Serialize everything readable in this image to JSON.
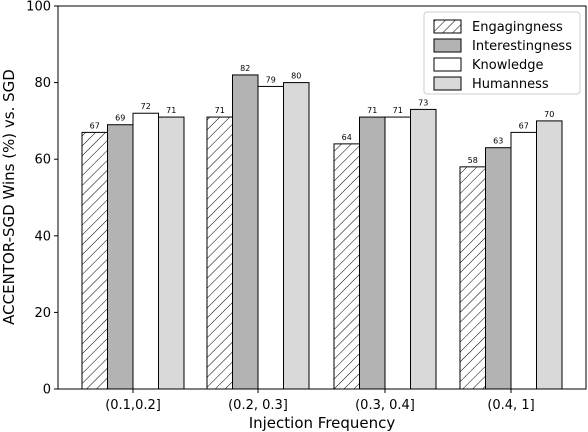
{
  "chart_data": {
    "type": "bar",
    "categories": [
      "(0.1,0.2]",
      "(0.2, 0.3]",
      "(0.3, 0.4]",
      "(0.4, 1]"
    ],
    "series": [
      {
        "name": "Engagingness",
        "values": [
          67,
          71,
          64,
          58
        ],
        "fill": "#ffffff",
        "pattern": "hatch"
      },
      {
        "name": "Interestingness",
        "values": [
          69,
          82,
          71,
          63
        ],
        "fill": "#b3b3b3"
      },
      {
        "name": "Knowledge",
        "values": [
          72,
          79,
          71,
          67
        ],
        "fill": "#ffffff"
      },
      {
        "name": "Humanness",
        "values": [
          71,
          80,
          73,
          70
        ],
        "fill": "#d9d9d9"
      }
    ],
    "xlabel": "Injection Frequency",
    "ylabel": "ACCENTOR-SGD Wins (%) vs. SGD",
    "ylim": [
      0,
      100
    ],
    "yticks": [
      "0",
      "20",
      "40",
      "60",
      "80",
      "100"
    ],
    "grid": false,
    "legend_position": "top-right"
  }
}
